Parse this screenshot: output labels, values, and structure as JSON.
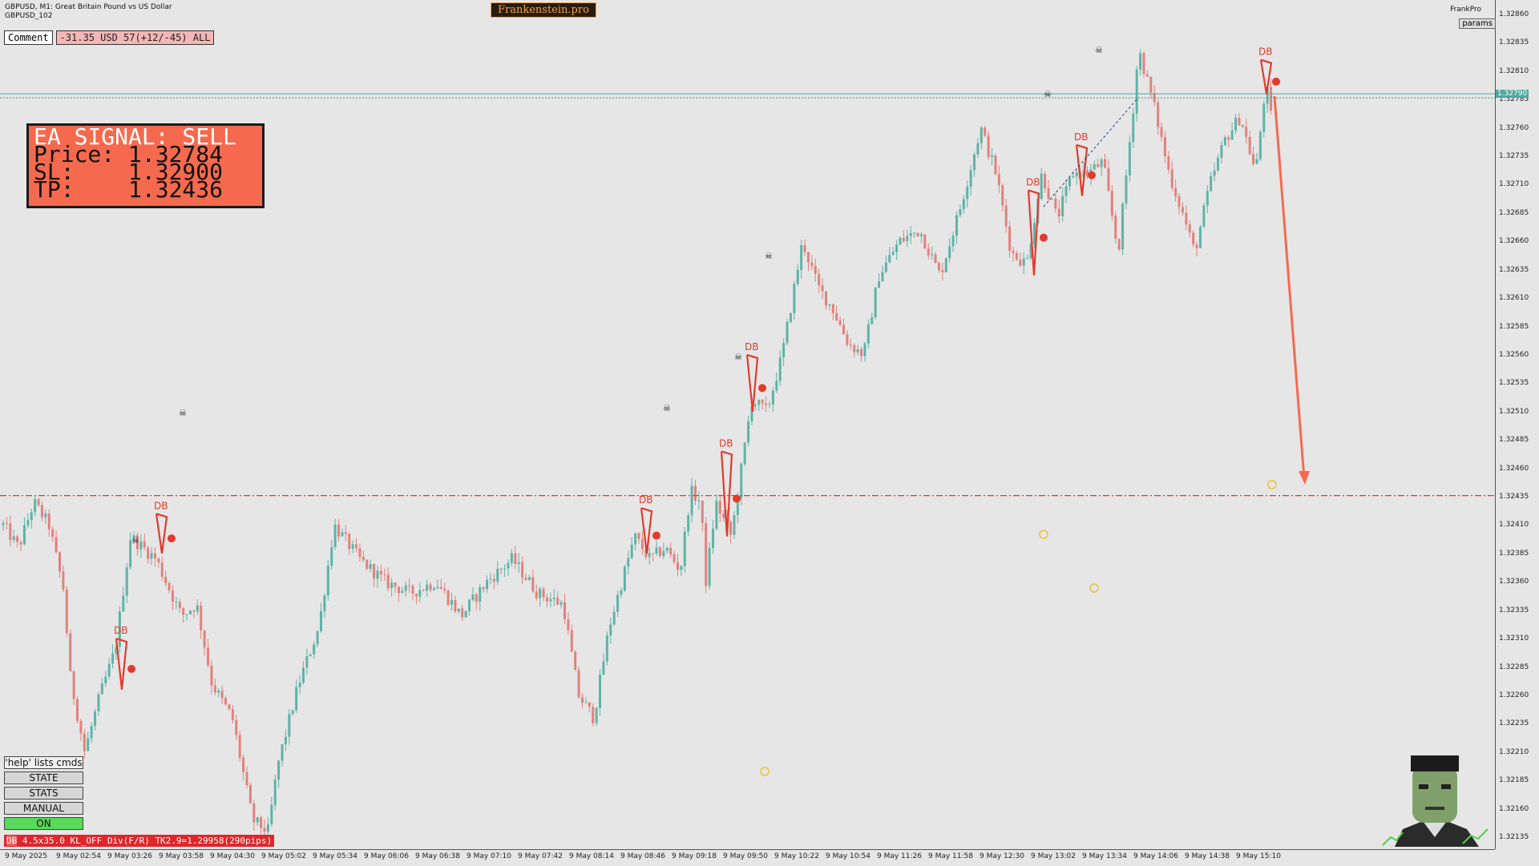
{
  "header": {
    "symbol_line": "GBPUSD, M1:  Great Britain Pound vs US Dollar",
    "subtitle": "GBPUSD_102",
    "brand": "Frankenstein.pro",
    "comment_label": "Comment",
    "comment_value": "-31.35 USD 57(+12/-45) ALL",
    "account_name": "FrankPro",
    "params_button": "params"
  },
  "signal_panel": {
    "title": "EA SIGNAL: SELL",
    "price_line": "Price: 1.32784",
    "sl_line": "SL:    1.32900",
    "tp_line": "TP:    1.32436"
  },
  "command_panel": {
    "help": "'help' lists cmds",
    "state": "STATE",
    "stats": "STATS",
    "manual": "MANUAL",
    "on": "ON"
  },
  "status_line": {
    "tag": "DB",
    "text": "4.5x35.0 KL_OFF Div(F/R) TK2.9=1.29958(290pips)"
  },
  "colors": {
    "bull": "#5fb3a6",
    "bear": "#e2817c",
    "signal": "#e23a2c",
    "background": "#e6e6e6",
    "accent": "#f56a4e"
  },
  "current_price": "1.32790",
  "price_axis": [
    "1.32860",
    "1.32835",
    "1.32810",
    "1.32785",
    "1.32760",
    "1.32735",
    "1.32710",
    "1.32685",
    "1.32660",
    "1.32635",
    "1.32610",
    "1.32585",
    "1.32560",
    "1.32535",
    "1.32510",
    "1.32485",
    "1.32460",
    "1.32435",
    "1.32410",
    "1.32385",
    "1.32360",
    "1.32335",
    "1.32310",
    "1.32285",
    "1.32260",
    "1.32235",
    "1.32210",
    "1.32185",
    "1.32160",
    "1.32135"
  ],
  "time_axis": [
    "9 May 2025",
    "9 May 02:54",
    "9 May 03:26",
    "9 May 03:58",
    "9 May 04:30",
    "9 May 05:02",
    "9 May 05:34",
    "9 May 06:06",
    "9 May 06:38",
    "9 May 07:10",
    "9 May 07:42",
    "9 May 08:14",
    "9 May 08:46",
    "9 May 09:18",
    "9 May 09:50",
    "9 May 10:22",
    "9 May 10:54",
    "9 May 11:26",
    "9 May 11:58",
    "9 May 12:30",
    "9 May 13:02",
    "9 May 13:34",
    "9 May 14:06",
    "9 May 14:38",
    "9 May 15:10"
  ],
  "chart_data": {
    "type": "candlestick",
    "y_range": [
      1.3211,
      1.3287
    ],
    "price_path": [
      [
        0,
        1.3241
      ],
      [
        3,
        1.3239
      ],
      [
        6,
        1.3243
      ],
      [
        9,
        1.3241
      ],
      [
        12,
        1.3235
      ],
      [
        13,
        1.3228
      ],
      [
        16,
        1.3221
      ],
      [
        19,
        1.3226
      ],
      [
        22,
        1.323
      ],
      [
        25,
        1.324
      ],
      [
        30,
        1.3238
      ],
      [
        35,
        1.3233
      ],
      [
        38,
        1.3234
      ],
      [
        41,
        1.3227
      ],
      [
        45,
        1.3224
      ],
      [
        49,
        1.3215
      ],
      [
        52,
        1.3214
      ],
      [
        54,
        1.322
      ],
      [
        58,
        1.3227
      ],
      [
        62,
        1.3232
      ],
      [
        65,
        1.3241
      ],
      [
        70,
        1.3238
      ],
      [
        75,
        1.3236
      ],
      [
        80,
        1.3235
      ],
      [
        85,
        1.3236
      ],
      [
        90,
        1.3233
      ],
      [
        95,
        1.3236
      ],
      [
        100,
        1.3238
      ],
      [
        105,
        1.3235
      ],
      [
        110,
        1.3234
      ],
      [
        113,
        1.3226
      ],
      [
        116,
        1.3224
      ],
      [
        119,
        1.3232
      ],
      [
        124,
        1.324
      ],
      [
        127,
        1.3238
      ],
      [
        130,
        1.3239
      ],
      [
        133,
        1.3237
      ],
      [
        135,
        1.3244
      ],
      [
        137,
        1.3243
      ],
      [
        138,
        1.3236
      ],
      [
        140,
        1.3243
      ],
      [
        143,
        1.324
      ],
      [
        147,
        1.3252
      ],
      [
        150,
        1.3251
      ],
      [
        153,
        1.3256
      ],
      [
        157,
        1.3266
      ],
      [
        160,
        1.3262
      ],
      [
        163,
        1.326
      ],
      [
        166,
        1.3257
      ],
      [
        169,
        1.3256
      ],
      [
        172,
        1.3263
      ],
      [
        176,
        1.3266
      ],
      [
        180,
        1.3267
      ],
      [
        184,
        1.3263
      ],
      [
        188,
        1.3269
      ],
      [
        192,
        1.3276
      ],
      [
        195,
        1.3272
      ],
      [
        198,
        1.3265
      ],
      [
        201,
        1.3264
      ],
      [
        204,
        1.3272
      ],
      [
        207,
        1.3268
      ],
      [
        210,
        1.3272
      ],
      [
        213,
        1.3272
      ],
      [
        216,
        1.3273
      ],
      [
        219,
        1.3265
      ],
      [
        222,
        1.3278
      ],
      [
        223,
        1.3283
      ],
      [
        226,
        1.3278
      ],
      [
        229,
        1.3272
      ],
      [
        232,
        1.3268
      ],
      [
        234,
        1.3265
      ],
      [
        237,
        1.3271
      ],
      [
        240,
        1.3275
      ],
      [
        243,
        1.3277
      ],
      [
        246,
        1.3272
      ],
      [
        248,
        1.328
      ],
      [
        249,
        1.3277
      ]
    ],
    "price_line": 1.3279,
    "take_profit": 1.32436,
    "db_patterns": [
      {
        "top": 1.3231,
        "bottom": 1.32265,
        "label": "DB"
      },
      {
        "top": 1.3242,
        "bottom": 1.32385,
        "label": "DB"
      },
      {
        "top": 1.32425,
        "bottom": 1.32385,
        "label": "DB"
      },
      {
        "top": 1.32475,
        "bottom": 1.324,
        "label": "DB"
      },
      {
        "top": 1.3256,
        "bottom": 1.3251,
        "label": "DB"
      },
      {
        "top": 1.32705,
        "bottom": 1.3263,
        "label": "DB"
      },
      {
        "top": 1.32745,
        "bottom": 1.327,
        "label": "DB"
      },
      {
        "top": 1.3282,
        "bottom": 1.3279,
        "label": "DB"
      }
    ]
  }
}
